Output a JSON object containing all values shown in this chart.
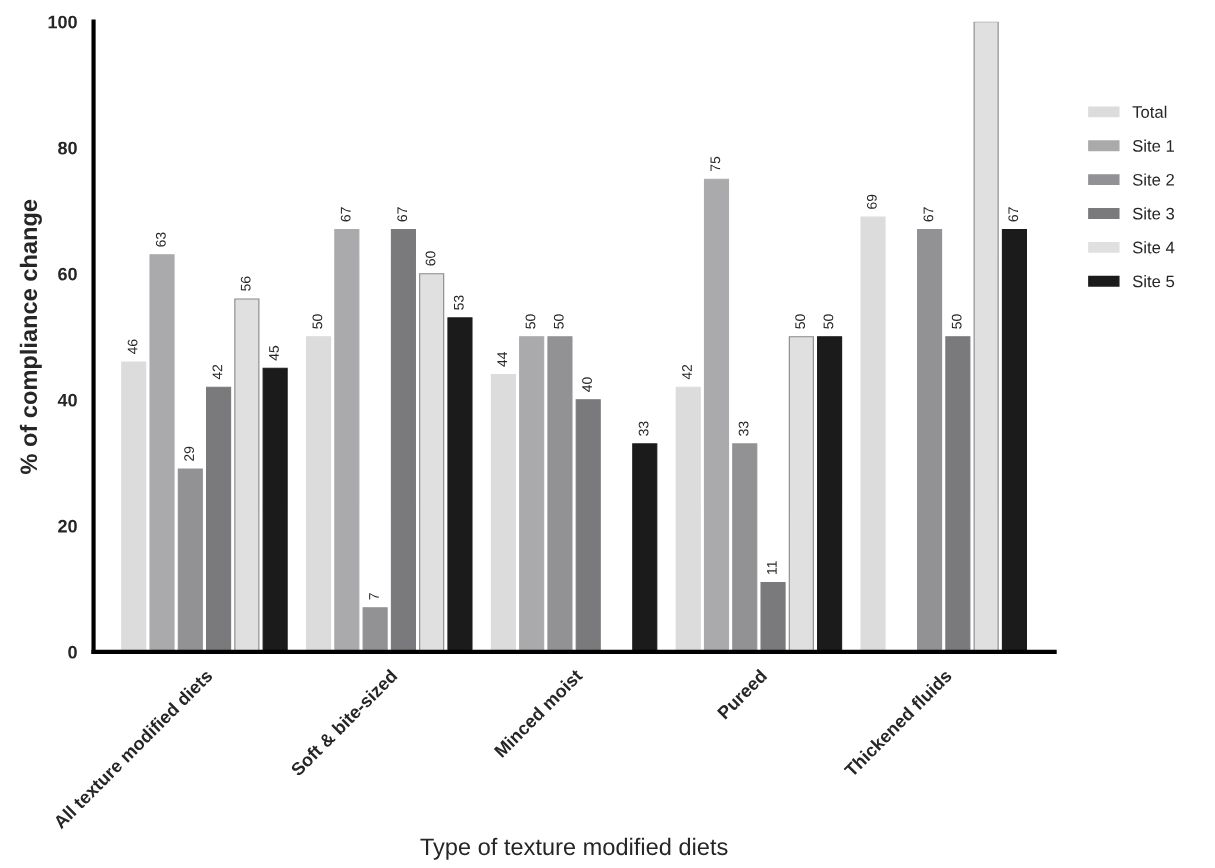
{
  "chart_data": {
    "type": "bar",
    "xlabel": "Type of texture modified diets",
    "ylabel": "% of compliance change",
    "categories": [
      "All texture modified diets",
      "Soft & bite-sized",
      "Minced moist",
      "Pureed",
      "Thickened fluids"
    ],
    "series": [
      {
        "name": "Total",
        "color": "#dcdcdd",
        "values": [
          46,
          50,
          44,
          42,
          69
        ],
        "value_labels": [
          "46",
          "50",
          "44",
          "42",
          "69"
        ]
      },
      {
        "name": "Site 1",
        "color": "#aaaaac",
        "values": [
          63,
          67,
          50,
          75,
          null
        ],
        "value_labels": [
          "63",
          "67",
          "50",
          "75",
          null
        ]
      },
      {
        "name": "Site 2",
        "color": "#929295",
        "values": [
          29,
          7,
          50,
          33,
          67
        ],
        "value_labels": [
          "29",
          "7",
          "50",
          "33",
          "67"
        ]
      },
      {
        "name": "Site 3",
        "color": "#7a7a7d",
        "values": [
          42,
          67,
          40,
          11,
          50
        ],
        "value_labels": [
          "42",
          "67",
          "40",
          "11",
          "50"
        ]
      },
      {
        "name": "Site 4",
        "color": "#e0e0e0",
        "values": [
          56,
          60,
          null,
          50,
          100
        ],
        "value_labels": [
          "56",
          "60",
          null,
          "50",
          null
        ]
      },
      {
        "name": "Site 5",
        "color": "#1b1b1b",
        "values": [
          45,
          53,
          33,
          50,
          67
        ],
        "value_labels": [
          "45",
          "53",
          "33",
          "50",
          "67"
        ]
      }
    ],
    "ylim": [
      0,
      100
    ],
    "yticks": [
      0,
      20,
      40,
      60,
      80,
      100
    ],
    "grid": false,
    "legend": "right"
  }
}
